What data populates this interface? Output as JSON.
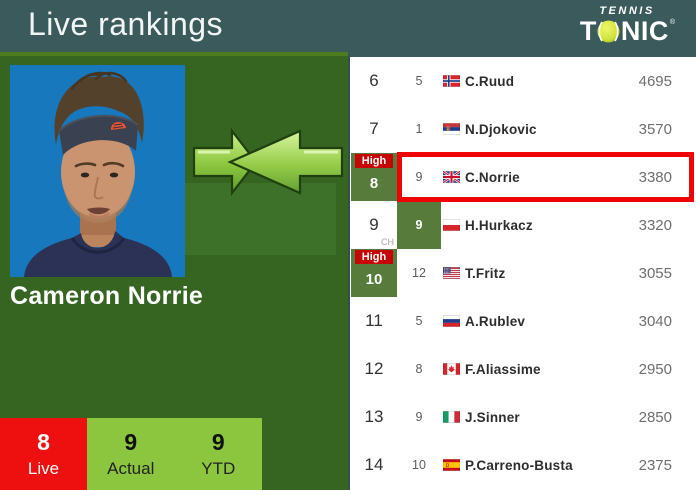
{
  "header": {
    "title": "Live rankings",
    "logo": {
      "top": "TENNIS",
      "bottom_t": "T",
      "bottom_nic": "NIC",
      "registered": "®"
    }
  },
  "player": {
    "name": "Cameron Norrie"
  },
  "summary": {
    "live": {
      "value": "8",
      "label": "Live"
    },
    "actual": {
      "value": "9",
      "label": "Actual"
    },
    "ytd": {
      "value": "9",
      "label": "YTD"
    }
  },
  "badge": {
    "high_label": "High",
    "career_high_label": "CH"
  },
  "rankings": [
    {
      "rank": "6",
      "ch": "5",
      "country": "norway",
      "name": "C.Ruud",
      "points": "4695"
    },
    {
      "rank": "7",
      "ch": "1",
      "country": "serbia",
      "name": "N.Djokovic",
      "points": "3570"
    },
    {
      "rank": "8",
      "ch": "9",
      "country": "uk",
      "name": "C.Norrie",
      "points": "3380",
      "high_badge": true,
      "rank_green": true,
      "highlight": true
    },
    {
      "rank": "9",
      "ch": "9",
      "country": "poland",
      "name": "H.Hurkacz",
      "points": "3320",
      "ch_label": "CH",
      "ch_green": true
    },
    {
      "rank": "10",
      "ch": "12",
      "country": "usa",
      "name": "T.Fritz",
      "points": "3055",
      "high_badge": true,
      "rank_green": true
    },
    {
      "rank": "11",
      "ch": "5",
      "country": "russia",
      "name": "A.Rublev",
      "points": "3040"
    },
    {
      "rank": "12",
      "ch": "8",
      "country": "canada",
      "name": "F.Aliassime",
      "points": "2950"
    },
    {
      "rank": "13",
      "ch": "9",
      "country": "italy",
      "name": "J.Sinner",
      "points": "2850"
    },
    {
      "rank": "14",
      "ch": "10",
      "country": "spain",
      "name": "P.Carreno-Busta",
      "points": "2375"
    }
  ],
  "colors": {
    "header_teal": "#3b5a5c",
    "panel_green": "#366522",
    "panel_strip_green": "#4c7c1e",
    "cell_olive_green": "#567b3a",
    "high_badge_red": "#c60505",
    "highlight_border_red": "#ee0404",
    "live_red": "#ee0f0f",
    "summary_green": "#8cc63e",
    "ball_yellow": "#cfe23a",
    "photo_blue": "#1778bd"
  }
}
